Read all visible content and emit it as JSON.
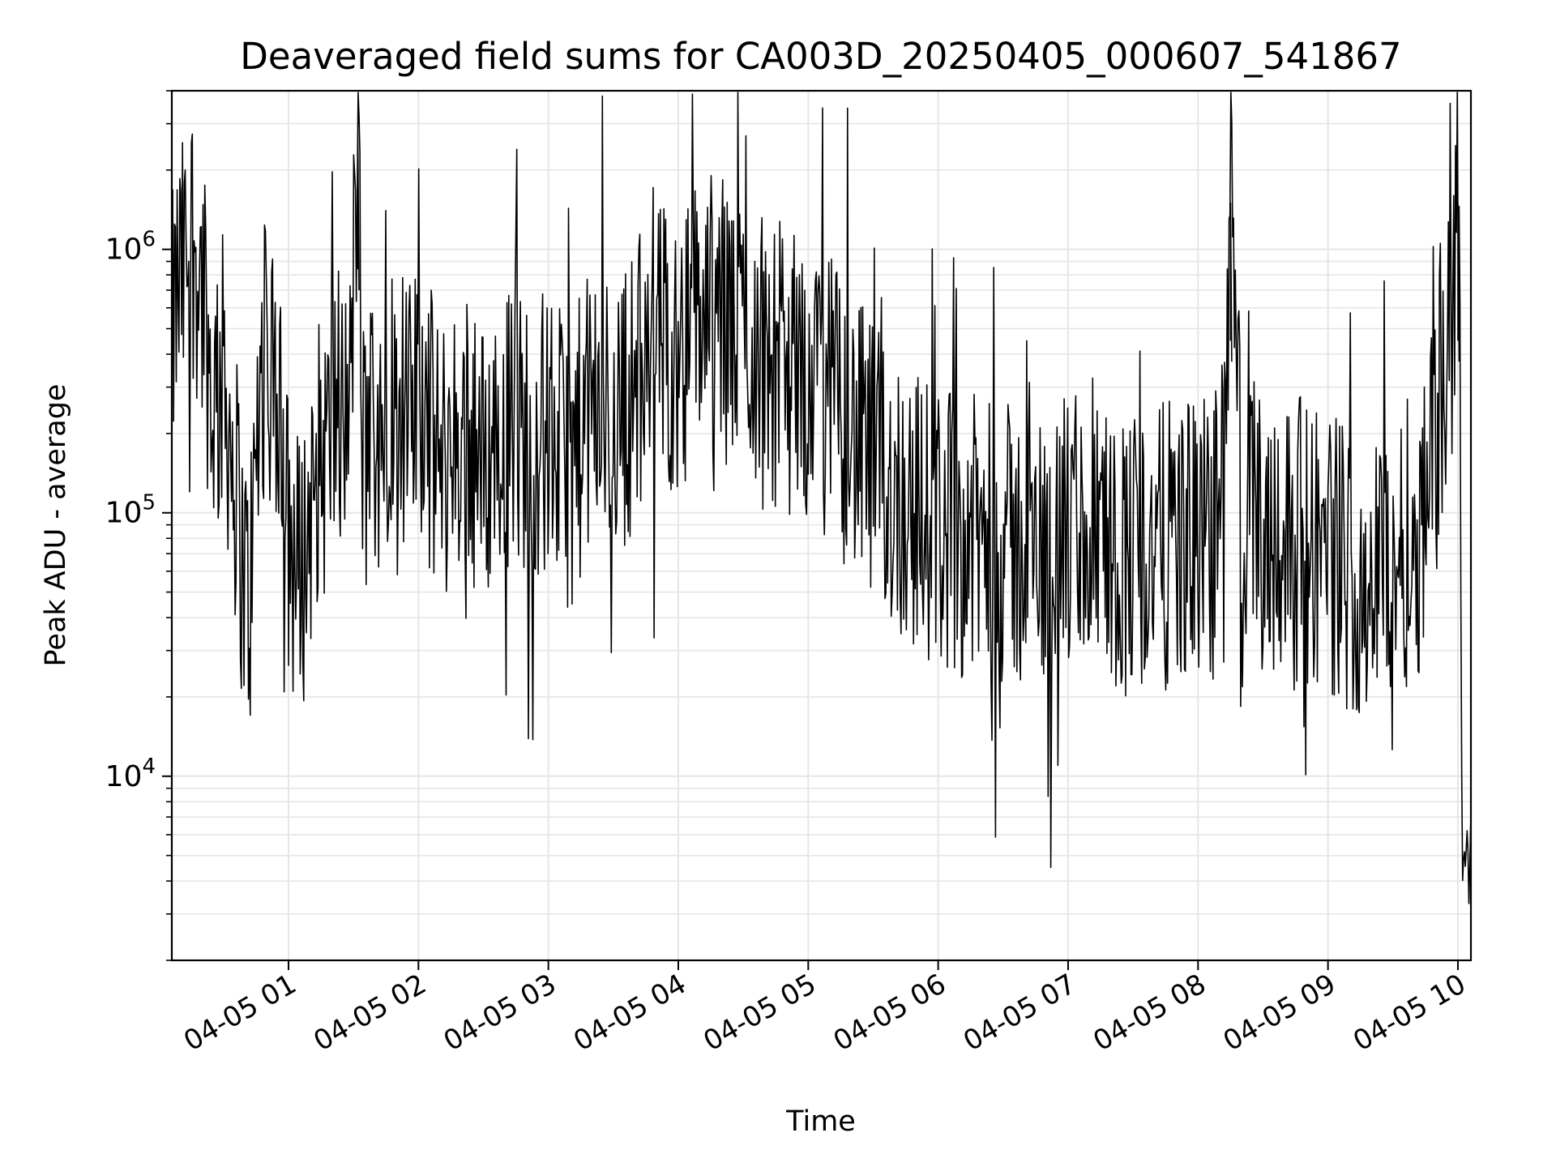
{
  "chart_data": {
    "type": "line",
    "title": "Deaveraged field sums for CA003D_20250405_000607_541867",
    "xlabel": "Time",
    "ylabel": "Peak ADU - average",
    "xscale": "time",
    "yscale": "log",
    "grid": true,
    "line_color": "#000000",
    "grid_color": "#e6e6e6",
    "xlim": [
      "2025-04-05T00:06:07",
      "2025-04-05T10:06:00"
    ],
    "ylim": [
      2000,
      4000000
    ],
    "x_ticks": [
      {
        "value": "2025-04-05T01:00:00",
        "label": "04-05 01"
      },
      {
        "value": "2025-04-05T02:00:00",
        "label": "04-05 02"
      },
      {
        "value": "2025-04-05T03:00:00",
        "label": "04-05 03"
      },
      {
        "value": "2025-04-05T04:00:00",
        "label": "04-05 04"
      },
      {
        "value": "2025-04-05T05:00:00",
        "label": "04-05 05"
      },
      {
        "value": "2025-04-05T06:00:00",
        "label": "04-05 06"
      },
      {
        "value": "2025-04-05T07:00:00",
        "label": "04-05 07"
      },
      {
        "value": "2025-04-05T08:00:00",
        "label": "04-05 08"
      },
      {
        "value": "2025-04-05T09:00:00",
        "label": "04-05 09"
      },
      {
        "value": "2025-04-05T10:00:00",
        "label": "04-05 10"
      }
    ],
    "y_ticks": [
      {
        "value": 10000,
        "base": "10",
        "exp": "4"
      },
      {
        "value": 100000,
        "base": "10",
        "exp": "5"
      },
      {
        "value": 1000000,
        "base": "10",
        "exp": "6"
      }
    ],
    "series": [
      {
        "x": [
          "2025-04-05T00:06:07",
          "2025-04-05T00:09:00",
          "2025-04-05T00:12:00",
          "2025-04-05T00:15:00",
          "2025-04-05T00:18:00",
          "2025-04-05T00:21:00",
          "2025-04-05T00:24:00",
          "2025-04-05T00:27:00",
          "2025-04-05T00:30:00",
          "2025-04-05T00:33:00",
          "2025-04-05T00:36:00",
          "2025-04-05T00:39:00",
          "2025-04-05T00:42:00",
          "2025-04-05T00:45:00",
          "2025-04-05T00:48:00",
          "2025-04-05T00:51:00",
          "2025-04-05T00:54:00",
          "2025-04-05T00:57:00",
          "2025-04-05T01:00:00",
          "2025-04-05T01:04:00",
          "2025-04-05T01:08:00",
          "2025-04-05T01:12:00",
          "2025-04-05T01:16:00",
          "2025-04-05T01:20:00",
          "2025-04-05T01:24:00",
          "2025-04-05T01:28:00",
          "2025-04-05T01:32:00",
          "2025-04-05T01:34:00",
          "2025-04-05T01:36:00",
          "2025-04-05T01:40:00",
          "2025-04-05T01:45:00",
          "2025-04-05T01:50:00",
          "2025-04-05T01:55:00",
          "2025-04-05T02:00:00",
          "2025-04-05T02:10:00",
          "2025-04-05T02:20:00",
          "2025-04-05T02:30:00",
          "2025-04-05T02:40:00",
          "2025-04-05T02:50:00",
          "2025-04-05T03:00:00",
          "2025-04-05T03:10:00",
          "2025-04-05T03:20:00",
          "2025-04-05T03:30:00",
          "2025-04-05T03:40:00",
          "2025-04-05T03:50:00",
          "2025-04-05T04:00:00",
          "2025-04-05T04:10:00",
          "2025-04-05T04:20:00",
          "2025-04-05T04:30:00",
          "2025-04-05T04:40:00",
          "2025-04-05T04:50:00",
          "2025-04-05T05:00:00",
          "2025-04-05T05:10:00",
          "2025-04-05T05:20:00",
          "2025-04-05T05:30:00",
          "2025-04-05T05:40:00",
          "2025-04-05T05:50:00",
          "2025-04-05T06:00:00",
          "2025-04-05T06:15:00",
          "2025-04-05T06:30:00",
          "2025-04-05T06:45:00",
          "2025-04-05T07:00:00",
          "2025-04-05T07:15:00",
          "2025-04-05T07:30:00",
          "2025-04-05T07:45:00",
          "2025-04-05T08:00:00",
          "2025-04-05T08:10:00",
          "2025-04-05T08:15:00",
          "2025-04-05T08:20:00",
          "2025-04-05T08:30:00",
          "2025-04-05T08:45:00",
          "2025-04-05T09:00:00",
          "2025-04-05T09:10:00",
          "2025-04-05T09:20:00",
          "2025-04-05T09:30:00",
          "2025-04-05T09:35:00",
          "2025-04-05T09:40:00",
          "2025-04-05T09:45:00",
          "2025-04-05T09:50:00",
          "2025-04-05T09:55:00",
          "2025-04-05T09:58:00",
          "2025-04-05T10:00:00",
          "2025-04-05T10:01:00",
          "2025-04-05T10:02:00",
          "2025-04-05T10:03:00",
          "2025-04-05T10:04:00",
          "2025-04-05T10:05:00",
          "2025-04-05T10:06:00"
        ],
        "y": [
          450000,
          700000,
          800000,
          1200000,
          900000,
          650000,
          300000,
          250000,
          350000,
          200000,
          120000,
          60000,
          45000,
          150000,
          400000,
          300000,
          250000,
          200000,
          80000,
          60000,
          70000,
          150000,
          160000,
          200000,
          300000,
          200000,
          2800000,
          200000,
          150000,
          300000,
          250000,
          400000,
          200000,
          300000,
          150000,
          200000,
          150000,
          220000,
          200000,
          200000,
          150000,
          250000,
          220000,
          300000,
          450000,
          400000,
          600000,
          550000,
          500000,
          400000,
          350000,
          300000,
          280000,
          200000,
          150000,
          120000,
          100000,
          90000,
          80000,
          75000,
          70000,
          80000,
          75000,
          70000,
          75000,
          80000,
          70000,
          1500000,
          100000,
          90000,
          80000,
          75000,
          60000,
          55000,
          70000,
          75000,
          80000,
          100000,
          200000,
          400000,
          600000,
          1500000,
          800000,
          3000,
          5000,
          7000,
          4000,
          6000
        ]
      }
    ]
  }
}
